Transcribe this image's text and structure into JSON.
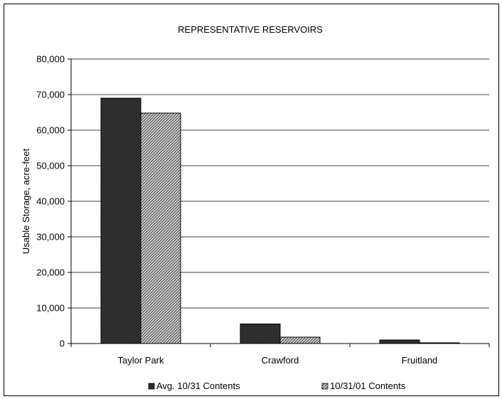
{
  "chart_data": {
    "type": "bar",
    "title": "REPRESENTATIVE RESERVOIRS",
    "xlabel": "",
    "ylabel": "Usable Storage, acre-feet",
    "categories": [
      "Taylor Park",
      "Crawford",
      "Fruitland"
    ],
    "series": [
      {
        "name": "Avg. 10/31 Contents",
        "values": [
          69000,
          5500,
          1000
        ],
        "color": "#3a3a3a",
        "pattern": "dark-crosshatch"
      },
      {
        "name": "10/31/01 Contents",
        "values": [
          64800,
          1800,
          200
        ],
        "color": "#8c8c8c",
        "pattern": "diagonal-hatch"
      }
    ],
    "ylim": [
      0,
      80000
    ],
    "yticks": [
      0,
      10000,
      20000,
      30000,
      40000,
      50000,
      60000,
      70000,
      80000
    ],
    "ytick_labels": [
      "0",
      "10,000",
      "20,000",
      "30,000",
      "40,000",
      "50,000",
      "60,000",
      "70,000",
      "80,000"
    ],
    "grid": true,
    "legend_position": "bottom"
  }
}
